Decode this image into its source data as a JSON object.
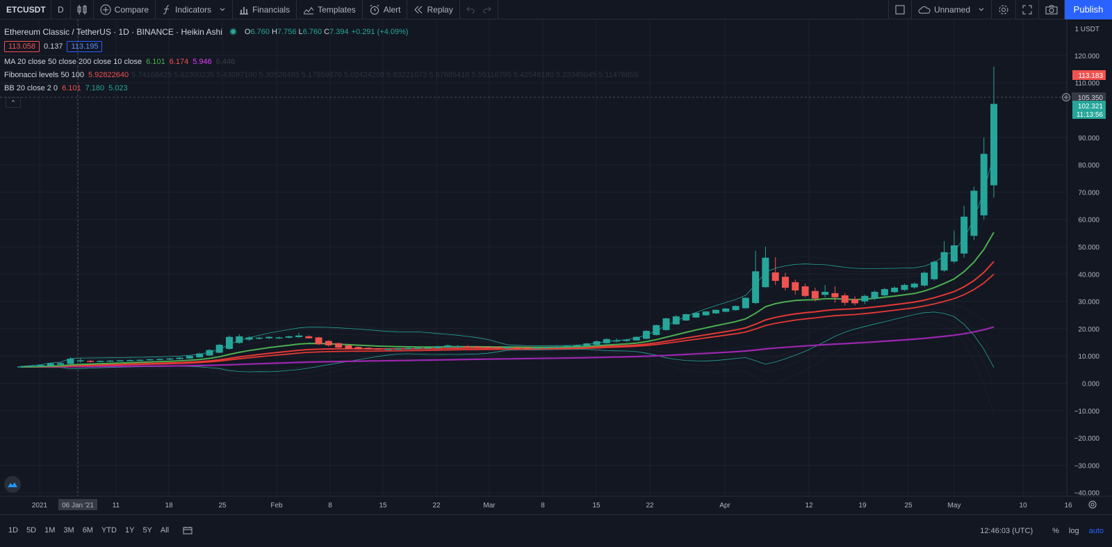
{
  "toolbar": {
    "symbol": "ETCUSDT",
    "interval": "D",
    "compare": "Compare",
    "indicators": "Indicators",
    "financials": "Financials",
    "templates": "Templates",
    "alert": "Alert",
    "replay": "Replay",
    "layout_name": "Unnamed",
    "publish": "Publish"
  },
  "legend": {
    "title": "Ethereum Classic / TetherUS · 1D · BINANCE · Heikin Ashi",
    "o_label": "O",
    "o": "6.760",
    "h_label": "H",
    "h": "7.756",
    "l_label": "L",
    "l": "6.760",
    "c_label": "C",
    "c": "7.394",
    "change": "+0.291 (+4.09%)",
    "bid": "113.058",
    "spread": "0.137",
    "ask": "113.195",
    "ma_label": "MA 20 close 50 close 200 close 10 close",
    "ma_v1": "6.101",
    "ma_v2": "6.174",
    "ma_v3": "5.946",
    "ma_v4": "6.446",
    "fib_label": "Fibonacci levels 50 100",
    "fib_v1": "5.92822640",
    "fib_rest": "5.74168425 5.62300235 5.43097100 5.30528485 5.17959870 5.02424208 5.83221073 5.67685410 5.55116795 5.42548180 5.23345045 5.11476855",
    "bb_label": "BB 20 close 2 0",
    "bb_v1": "6.101",
    "bb_v2": "7.180",
    "bb_v3": "5.023"
  },
  "price_axis": {
    "currency": "1 USDT",
    "ticks": [
      "120.000",
      "110.000",
      "90.000",
      "80.000",
      "70.000",
      "60.000",
      "50.000",
      "40.000",
      "30.000",
      "20.000",
      "10.000",
      "0.000",
      "−10.000",
      "−20.000",
      "−30.000",
      "−40.000"
    ],
    "tick_values": [
      120,
      110,
      90,
      80,
      70,
      60,
      50,
      40,
      30,
      20,
      10,
      0,
      -10,
      -20,
      -30,
      -40
    ],
    "high_tag": "113.183",
    "crosshair_tag": "105.350",
    "last_price": "102.321",
    "countdown": "11:13:56"
  },
  "time_axis": {
    "labels": [
      "2021",
      "06 Jan '21",
      "11",
      "18",
      "25",
      "Feb",
      "8",
      "15",
      "22",
      "Mar",
      "8",
      "15",
      "22",
      "Apr",
      "12",
      "19",
      "25",
      "May",
      "10",
      "16"
    ]
  },
  "bottom": {
    "timeframes": [
      "1D",
      "5D",
      "1M",
      "3M",
      "6M",
      "YTD",
      "1Y",
      "5Y",
      "All"
    ],
    "clock": "12:46:03 (UTC)",
    "percent": "%",
    "log": "log",
    "auto": "auto"
  },
  "colors": {
    "up": "#26a69a",
    "down": "#ef5350",
    "ma50": "#4caf50",
    "ma200": "#9c27b0",
    "ma_red": "#e53935",
    "bb": "#26a69a",
    "accent": "#2962ff"
  },
  "chart_data": {
    "type": "candlestick",
    "ylim": [
      -40,
      125
    ],
    "candles_ohlc": [
      [
        6.0,
        6.3,
        5.8,
        6.2
      ],
      [
        6.1,
        6.5,
        6.0,
        6.4
      ],
      [
        6.2,
        6.8,
        6.1,
        6.7
      ],
      [
        6.4,
        7.5,
        6.3,
        7.3
      ],
      [
        6.8,
        7.6,
        6.7,
        7.4
      ],
      [
        7.1,
        9.5,
        7.0,
        9.0
      ],
      [
        8.1,
        9.2,
        7.5,
        8.4
      ],
      [
        8.2,
        8.6,
        7.7,
        8.0
      ],
      [
        8.1,
        8.4,
        7.8,
        8.2
      ],
      [
        8.1,
        8.5,
        7.9,
        8.3
      ],
      [
        8.2,
        8.6,
        8.0,
        8.4
      ],
      [
        8.3,
        8.7,
        8.1,
        8.5
      ],
      [
        8.4,
        8.8,
        8.2,
        8.6
      ],
      [
        8.5,
        9.0,
        8.3,
        8.8
      ],
      [
        8.6,
        9.1,
        8.4,
        8.9
      ],
      [
        8.7,
        9.3,
        8.5,
        9.1
      ],
      [
        8.9,
        9.6,
        8.7,
        9.4
      ],
      [
        9.1,
        10.2,
        9.0,
        10.0
      ],
      [
        9.5,
        11.2,
        9.4,
        10.9
      ],
      [
        10.2,
        12.5,
        10.0,
        12.2
      ],
      [
        11.2,
        14.5,
        11.0,
        14.1
      ],
      [
        12.6,
        17.5,
        12.4,
        17.0
      ],
      [
        14.8,
        18.0,
        14.5,
        17.2
      ],
      [
        16.0,
        17.3,
        15.5,
        16.8
      ],
      [
        16.4,
        17.0,
        16.0,
        16.7
      ],
      [
        16.5,
        17.2,
        16.2,
        17.0
      ],
      [
        16.7,
        17.1,
        16.3,
        16.8
      ],
      [
        16.7,
        17.4,
        16.5,
        17.2
      ],
      [
        16.9,
        18.5,
        16.7,
        17.5
      ],
      [
        17.2,
        17.6,
        16.4,
        16.5
      ],
      [
        16.8,
        17.0,
        14.0,
        14.3
      ],
      [
        15.5,
        15.8,
        13.5,
        13.9
      ],
      [
        14.7,
        14.9,
        12.8,
        13.1
      ],
      [
        13.9,
        14.1,
        12.5,
        12.7
      ],
      [
        13.3,
        13.5,
        12.4,
        12.6
      ],
      [
        13.0,
        13.2,
        12.4,
        12.5
      ],
      [
        12.7,
        12.9,
        12.3,
        12.4
      ],
      [
        12.5,
        12.8,
        12.3,
        12.6
      ],
      [
        12.5,
        12.9,
        12.4,
        12.7
      ],
      [
        12.6,
        13.1,
        12.5,
        12.9
      ],
      [
        12.7,
        13.2,
        12.6,
        13.0
      ],
      [
        12.8,
        13.3,
        12.7,
        13.1
      ],
      [
        12.9,
        13.8,
        12.8,
        13.5
      ],
      [
        13.2,
        14.2,
        13.0,
        13.9
      ],
      [
        13.5,
        14.0,
        13.1,
        13.6
      ],
      [
        13.6,
        13.9,
        13.2,
        13.4
      ],
      [
        13.5,
        13.7,
        13.0,
        13.2
      ],
      [
        13.3,
        13.6,
        12.9,
        13.1
      ],
      [
        13.2,
        13.4,
        12.8,
        13.0
      ],
      [
        13.1,
        13.5,
        12.9,
        13.2
      ],
      [
        13.1,
        13.4,
        12.8,
        13.0
      ],
      [
        13.0,
        13.3,
        12.7,
        12.9
      ],
      [
        12.9,
        13.3,
        12.7,
        13.1
      ],
      [
        13.0,
        13.4,
        12.8,
        13.2
      ],
      [
        13.1,
        13.7,
        13.0,
        13.5
      ],
      [
        13.3,
        13.9,
        13.1,
        13.7
      ],
      [
        13.5,
        14.2,
        13.3,
        14.0
      ],
      [
        13.7,
        14.8,
        13.6,
        14.6
      ],
      [
        14.1,
        15.6,
        14.0,
        15.4
      ],
      [
        14.7,
        16.5,
        14.5,
        16.2
      ],
      [
        15.4,
        16.4,
        15.0,
        15.7
      ],
      [
        15.5,
        16.2,
        15.2,
        16.0
      ],
      [
        15.7,
        17.2,
        15.6,
        17.0
      ],
      [
        16.3,
        19.5,
        16.1,
        19.2
      ],
      [
        17.7,
        21.5,
        17.5,
        21.3
      ],
      [
        19.5,
        24.0,
        19.3,
        23.8
      ],
      [
        21.6,
        25.0,
        21.4,
        24.5
      ],
      [
        23.0,
        25.5,
        22.8,
        25.3
      ],
      [
        24.1,
        26.0,
        23.9,
        25.8
      ],
      [
        24.9,
        26.5,
        24.7,
        26.3
      ],
      [
        25.6,
        27.0,
        25.4,
        26.9
      ],
      [
        26.2,
        27.5,
        26.0,
        27.4
      ],
      [
        26.8,
        28.5,
        26.6,
        28.3
      ],
      [
        27.5,
        31.5,
        27.3,
        31.3
      ],
      [
        29.4,
        48.5,
        29.0,
        41.0
      ],
      [
        35.2,
        50.0,
        35.0,
        46.0
      ],
      [
        40.6,
        46.2,
        36.0,
        37.5
      ],
      [
        39.0,
        40.5,
        34.0,
        35.0
      ],
      [
        37.0,
        38.0,
        32.5,
        34.0
      ],
      [
        35.5,
        36.5,
        31.5,
        32.0
      ],
      [
        33.8,
        35.0,
        30.0,
        31.0
      ],
      [
        32.4,
        36.0,
        31.5,
        33.5
      ],
      [
        33.0,
        35.5,
        29.5,
        31.5
      ],
      [
        32.2,
        33.0,
        28.5,
        29.5
      ],
      [
        30.8,
        31.8,
        28.5,
        29.3
      ],
      [
        30.0,
        32.5,
        29.0,
        32.0
      ],
      [
        31.0,
        34.0,
        30.5,
        33.5
      ],
      [
        32.2,
        35.0,
        31.5,
        34.5
      ],
      [
        33.4,
        35.5,
        33.0,
        35.0
      ],
      [
        34.2,
        36.5,
        33.8,
        36.0
      ],
      [
        35.1,
        37.0,
        34.6,
        36.5
      ],
      [
        35.8,
        41.0,
        35.3,
        40.5
      ],
      [
        38.1,
        45.0,
        37.6,
        44.5
      ],
      [
        41.3,
        52.0,
        40.8,
        48.0
      ],
      [
        44.6,
        56.0,
        44.0,
        50.5
      ],
      [
        47.5,
        65.0,
        46.0,
        61.0
      ],
      [
        54.0,
        72.0,
        52.5,
        70.5
      ],
      [
        61.5,
        90.0,
        60.0,
        84.0
      ],
      [
        72.5,
        116.0,
        68.0,
        102.3
      ]
    ]
  }
}
